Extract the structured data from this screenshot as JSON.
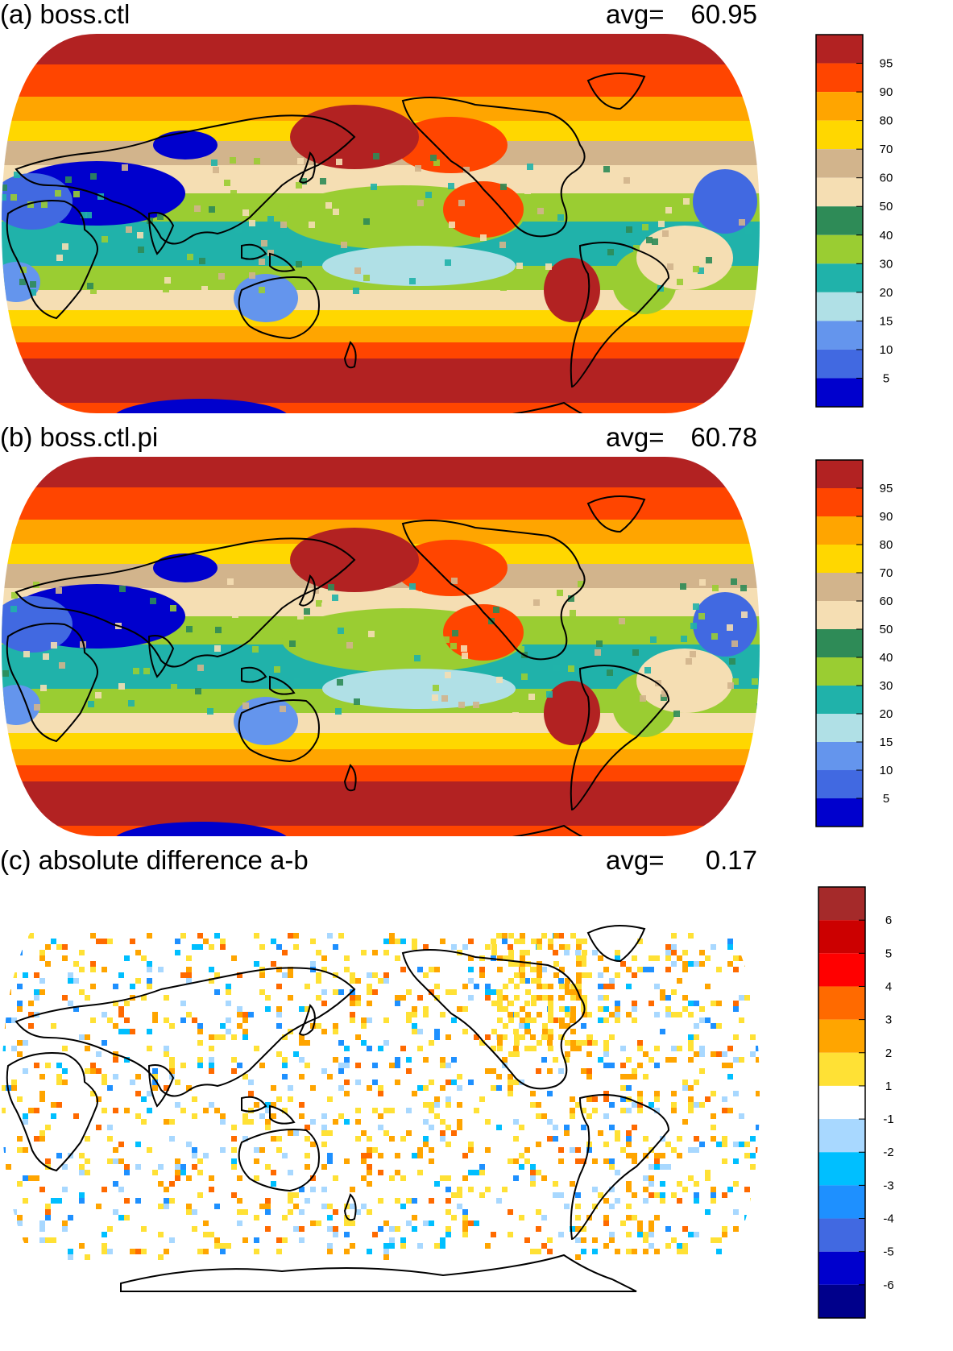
{
  "panels": [
    {
      "id": "a",
      "title": "(a) boss.ctl",
      "avg_label": "avg=",
      "avg_value": "60.95",
      "colorbar": {
        "labels": [
          "95",
          "90",
          "80",
          "70",
          "60",
          "50",
          "40",
          "30",
          "20",
          "15",
          "10",
          "5"
        ],
        "colors": [
          "#b22222",
          "#ff4500",
          "#ffa500",
          "#ffd700",
          "#d2b48c",
          "#f5deb3",
          "#2e8b57",
          "#9acd32",
          "#20b2aa",
          "#b0e0e6",
          "#6495ed",
          "#4169e1",
          "#0000cd"
        ]
      }
    },
    {
      "id": "b",
      "title": "(b) boss.ctl.pi",
      "avg_label": "avg=",
      "avg_value": "60.78",
      "colorbar": {
        "labels": [
          "95",
          "90",
          "80",
          "70",
          "60",
          "50",
          "40",
          "30",
          "20",
          "15",
          "10",
          "5"
        ],
        "colors": [
          "#b22222",
          "#ff4500",
          "#ffa500",
          "#ffd700",
          "#d2b48c",
          "#f5deb3",
          "#2e8b57",
          "#9acd32",
          "#20b2aa",
          "#b0e0e6",
          "#6495ed",
          "#4169e1",
          "#0000cd"
        ]
      }
    },
    {
      "id": "c",
      "title": "(c) absolute difference a-b",
      "avg_label": "avg=",
      "avg_value": "0.17",
      "colorbar": {
        "labels": [
          "6",
          "5",
          "4",
          "3",
          "2",
          "1",
          "-1",
          "-2",
          "-3",
          "-4",
          "-5",
          "-6"
        ],
        "colors": [
          "#a52a2a",
          "#cc0000",
          "#ff0000",
          "#ff6a00",
          "#ffa500",
          "#ffe135",
          "#ffffff",
          "#a8d8ff",
          "#00bfff",
          "#1e90ff",
          "#4169e1",
          "#0000cd",
          "#00008b"
        ]
      }
    }
  ]
}
